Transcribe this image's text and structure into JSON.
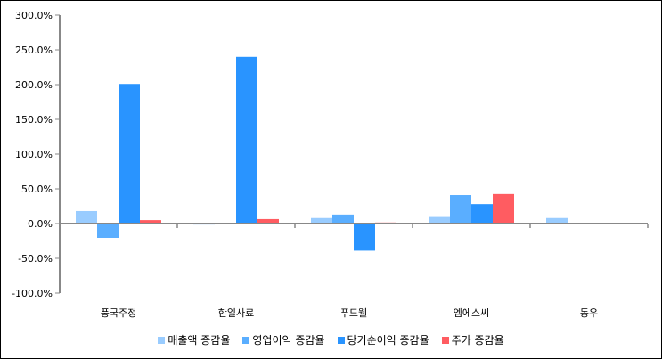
{
  "chart_data": {
    "type": "bar",
    "categories": [
      "풍국주정",
      "한일사료",
      "푸드웰",
      "엠에스씨",
      "동우"
    ],
    "series": [
      {
        "name": "매출액 증감율",
        "color": "#99ccff",
        "values": [
          18,
          -1.5,
          8,
          9.5,
          8
        ]
      },
      {
        "name": "영업이익 증감율",
        "color": "#5aaeff",
        "values": [
          -20.5,
          0,
          13,
          41,
          0
        ]
      },
      {
        "name": "당기순이익 증감율",
        "color": "#2994ff",
        "values": [
          201,
          240,
          -39,
          28,
          0
        ]
      },
      {
        "name": "주가 증감율",
        "color": "#ff5c61",
        "values": [
          5,
          6.5,
          1.5,
          42.5,
          0
        ]
      }
    ],
    "ylim": [
      -100,
      300
    ],
    "yticks": [
      "300.0%",
      "250.0%",
      "200.0%",
      "150.0%",
      "100.0%",
      "50.0%",
      "0.0%",
      "-50.0%",
      "-100.0%"
    ],
    "legend": "bottom"
  }
}
